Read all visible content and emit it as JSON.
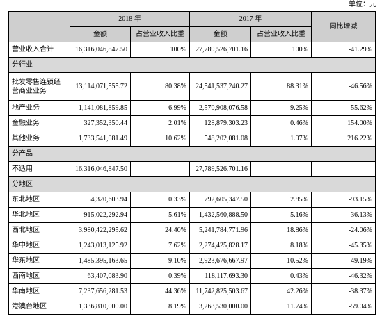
{
  "header": {
    "unit": "单位：元"
  },
  "table": {
    "columns_top": [
      "2018 年",
      "2017 年",
      "同比增减"
    ],
    "columns_sub": [
      "金额",
      "占营业收入比重",
      "金额",
      "占营业收入比重"
    ],
    "rows": [
      [
        "营业收入合计",
        "16,316,046,847.50",
        "100%",
        "27,789,526,701.16",
        "100%",
        "-41.29%"
      ],
      {
        "section": "分行业"
      },
      [
        "批发零售连锁经营商业业务",
        "13,114,071,555.72",
        "80.38%",
        "24,541,537,240.27",
        "88.31%",
        "-46.56%"
      ],
      [
        "地产业务",
        "1,141,081,859.85",
        "6.99%",
        "2,570,908,076.58",
        "9.25%",
        "-55.62%"
      ],
      [
        "金融业务",
        "327,352,350.44",
        "2.01%",
        "128,879,303.23",
        "0.46%",
        "154.00%"
      ],
      [
        "其他业务",
        "1,733,541,081.49",
        "10.62%",
        "548,202,081.08",
        "1.97%",
        "216.22%"
      ],
      {
        "section": "分产品"
      },
      [
        "不适用",
        "16,316,046,847.50",
        null,
        "27,789,526,701.16",
        null,
        null
      ],
      {
        "section": "分地区"
      },
      [
        "东北地区",
        "54,320,603.94",
        "0.33%",
        "792,605,347.50",
        "2.85%",
        "-93.15%"
      ],
      [
        "华北地区",
        "915,022,292.94",
        "5.61%",
        "1,432,560,888.50",
        "5.16%",
        "-36.13%"
      ],
      [
        "西北地区",
        "3,980,422,295.62",
        "24.40%",
        "5,241,784,771.96",
        "18.86%",
        "-24.06%"
      ],
      [
        "华中地区",
        "1,243,013,125.92",
        "7.62%",
        "2,274,425,828.17",
        "8.18%",
        "-45.35%"
      ],
      [
        "华东地区",
        "1,485,395,163.65",
        "9.10%",
        "2,923,676,667.97",
        "10.52%",
        "-49.19%"
      ],
      [
        "西南地区",
        "63,407,083.90",
        "0.39%",
        "118,117,693.30",
        "0.43%",
        "-46.32%"
      ],
      [
        "华南地区",
        "7,237,656,281.53",
        "44.36%",
        "11,742,825,503.67",
        "42.26%",
        "-38.37%"
      ],
      [
        "港澳台地区",
        "1,336,810,000.00",
        "8.19%",
        "3,263,530,000.00",
        "11.74%",
        "-59.04%"
      ]
    ]
  }
}
